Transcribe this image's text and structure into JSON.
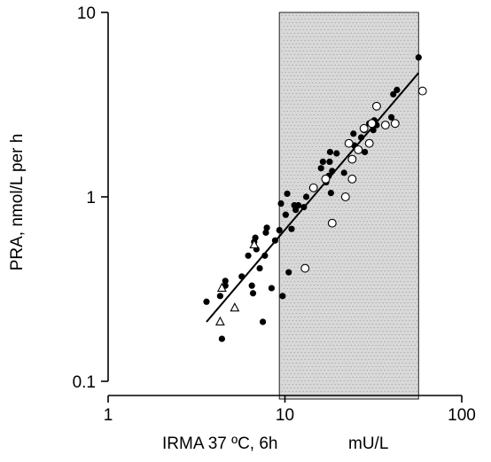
{
  "chart_data": {
    "type": "scatter",
    "xscale": "log",
    "yscale": "log",
    "xlim": [
      1,
      100
    ],
    "ylim": [
      0.1,
      10
    ],
    "xlabel": "IRMA 37 ºC, 6h",
    "xunit": "mU/L",
    "ylabel": "PRA, nmol/L per h",
    "x_ticks": [
      {
        "value": 1,
        "label": "1"
      },
      {
        "value": 10,
        "label": "10"
      },
      {
        "value": 100,
        "label": "100"
      }
    ],
    "y_ticks": [
      {
        "value": 0.1,
        "label": "0.1"
      },
      {
        "value": 1,
        "label": "1"
      },
      {
        "value": 10,
        "label": "10"
      }
    ],
    "shaded_region": {
      "x": [
        9.3,
        57
      ],
      "fill": "#d8d8d8"
    },
    "series": [
      {
        "marker": "filled-circle",
        "points": [
          [
            3.6,
            0.27
          ],
          [
            4.3,
            0.29
          ],
          [
            4.4,
            0.17
          ],
          [
            4.6,
            0.33
          ],
          [
            4.6,
            0.35
          ],
          [
            5.7,
            0.37
          ],
          [
            6.2,
            0.48
          ],
          [
            6.5,
            0.33
          ],
          [
            6.6,
            0.3
          ],
          [
            6.7,
            0.57
          ],
          [
            6.8,
            0.6
          ],
          [
            6.9,
            0.52
          ],
          [
            7.2,
            0.41
          ],
          [
            7.5,
            0.21
          ],
          [
            7.7,
            0.48
          ],
          [
            7.8,
            0.64
          ],
          [
            7.9,
            0.68
          ],
          [
            8.4,
            0.32
          ],
          [
            8.8,
            0.58
          ],
          [
            9.3,
            0.66
          ],
          [
            9.5,
            0.92
          ],
          [
            9.7,
            0.29
          ],
          [
            10.1,
            0.8
          ],
          [
            10.3,
            1.04
          ],
          [
            10.5,
            0.39
          ],
          [
            10.9,
            0.67
          ],
          [
            11.3,
            0.9
          ],
          [
            11.5,
            0.85
          ],
          [
            11.9,
            0.9
          ],
          [
            12.8,
            0.88
          ],
          [
            13.2,
            1.0
          ],
          [
            14.3,
            1.12
          ],
          [
            16.0,
            1.43
          ],
          [
            16.4,
            1.55
          ],
          [
            17.1,
            1.2
          ],
          [
            17.7,
            1.3
          ],
          [
            17.9,
            1.55
          ],
          [
            18.0,
            1.75
          ],
          [
            18.2,
            1.05
          ],
          [
            18.5,
            1.38
          ],
          [
            19.6,
            1.72
          ],
          [
            21.6,
            1.35
          ],
          [
            24.4,
            2.2
          ],
          [
            24.7,
            1.9
          ],
          [
            27.0,
            2.1
          ],
          [
            28.1,
            2.3
          ],
          [
            28.3,
            1.75
          ],
          [
            30.0,
            2.5
          ],
          [
            31.6,
            2.3
          ],
          [
            32.0,
            2.6
          ],
          [
            33.0,
            2.45
          ],
          [
            40.0,
            2.7
          ],
          [
            41.0,
            3.6
          ],
          [
            43.0,
            3.8
          ],
          [
            57.0,
            5.7
          ]
        ]
      },
      {
        "marker": "open-circle",
        "points": [
          [
            13.0,
            0.41
          ],
          [
            14.5,
            1.12
          ],
          [
            17.0,
            1.25
          ],
          [
            18.5,
            0.72
          ],
          [
            22.0,
            1.0
          ],
          [
            23.0,
            1.95
          ],
          [
            24.0,
            1.6
          ],
          [
            24.0,
            1.25
          ],
          [
            26.0,
            1.8
          ],
          [
            28.0,
            2.35
          ],
          [
            30.0,
            1.95
          ],
          [
            31.0,
            2.5
          ],
          [
            33.0,
            3.1
          ],
          [
            37.0,
            2.45
          ],
          [
            42.0,
            2.5
          ],
          [
            60.0,
            3.75
          ]
        ]
      },
      {
        "marker": "open-triangle",
        "points": [
          [
            4.3,
            0.21
          ],
          [
            4.4,
            0.32
          ],
          [
            5.2,
            0.25
          ],
          [
            6.7,
            0.55
          ]
        ]
      }
    ],
    "regression_line": [
      [
        3.6,
        0.21
      ],
      [
        57,
        4.7
      ]
    ]
  }
}
